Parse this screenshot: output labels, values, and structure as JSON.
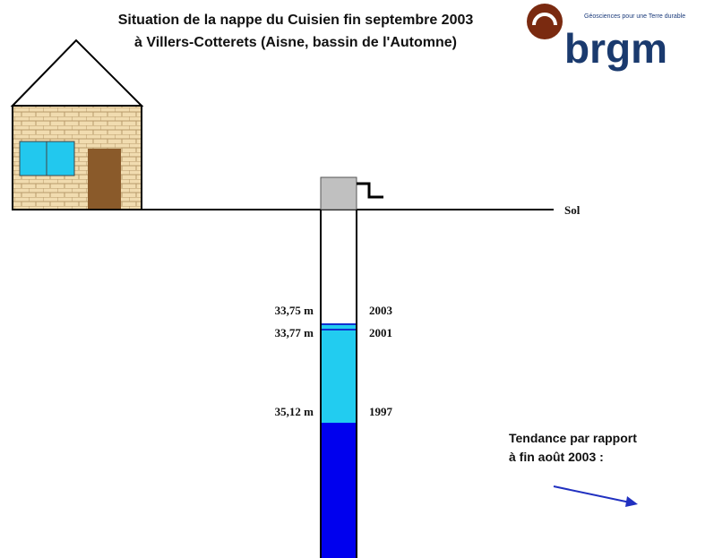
{
  "title": {
    "line1": "Situation de la nappe du Cuisien fin septembre 2003",
    "line2": "à Villers-Cotterets (Aisne, bassin de l'Automne)"
  },
  "logo": {
    "name": "brgm",
    "tagline": "Géosciences pour une Terre durable"
  },
  "ground_label": "Sol",
  "levels": [
    {
      "depth": "33,75 m",
      "year": "2003"
    },
    {
      "depth": "33,77 m",
      "year": "2001"
    },
    {
      "depth": "35,12 m",
      "year": "1997"
    }
  ],
  "trend": {
    "line1": "Tendance par rapport",
    "line2": "à fin août 2003 :"
  }
}
